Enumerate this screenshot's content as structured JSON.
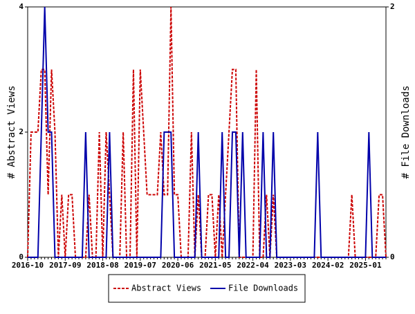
{
  "chart_data": {
    "type": "line",
    "y_label": "# Abstract Views",
    "y2_label": "# File Downloads",
    "categories": [
      "2016-10",
      null,
      null,
      null,
      null,
      null,
      null,
      null,
      null,
      null,
      null,
      "2017-09",
      null,
      null,
      null,
      null,
      null,
      null,
      null,
      null,
      null,
      null,
      "2018-08",
      null,
      null,
      null,
      null,
      null,
      null,
      null,
      null,
      null,
      null,
      "2019-07",
      null,
      null,
      null,
      null,
      null,
      null,
      null,
      null,
      null,
      null,
      "2020-06",
      null,
      null,
      null,
      null,
      null,
      null,
      null,
      null,
      null,
      null,
      "2021-05",
      null,
      null,
      null,
      null,
      null,
      null,
      null,
      null,
      null,
      null,
      "2022-04",
      null,
      null,
      null,
      null,
      null,
      null,
      null,
      null,
      null,
      null,
      "2023-03",
      null,
      null,
      null,
      null,
      null,
      null,
      null,
      null,
      null,
      null,
      "2024-02",
      null,
      null,
      null,
      null,
      null,
      null,
      null,
      null,
      null,
      null,
      "2025-01",
      null,
      null,
      null,
      null,
      null,
      null
    ],
    "series": [
      {
        "name": "Abstract Views",
        "color": "#cc0000",
        "dash": true,
        "values": [
          0,
          2,
          2,
          2,
          3,
          3,
          1,
          3,
          2,
          0,
          1,
          0,
          1,
          1,
          0,
          0,
          0,
          0,
          1,
          0,
          0,
          2,
          0,
          2,
          1,
          0,
          0,
          0,
          2,
          0,
          0,
          3,
          0,
          3,
          2,
          1,
          1,
          1,
          1,
          2,
          1,
          1,
          4,
          1,
          1,
          0,
          0,
          0,
          2,
          0,
          1,
          0,
          0,
          1,
          1,
          0,
          1,
          0,
          1,
          2,
          3,
          3,
          0,
          0,
          0,
          0,
          0,
          3,
          0,
          0,
          1,
          0,
          1,
          0,
          0,
          0,
          0,
          0,
          0,
          0,
          0,
          0,
          0,
          0,
          0,
          0,
          0,
          0,
          0,
          0,
          0,
          0,
          0,
          0,
          0,
          1,
          0,
          0,
          0,
          0,
          0,
          0,
          0,
          1,
          1,
          0
        ]
      },
      {
        "name": "File Downloads",
        "color": "#0000aa",
        "axis": "y2",
        "values": [
          0,
          0,
          0,
          0,
          1,
          2,
          1,
          1,
          0,
          0,
          0,
          0,
          0,
          0,
          0,
          0,
          0,
          1,
          0,
          0,
          0,
          0,
          0,
          0,
          1,
          0,
          0,
          0,
          0,
          0,
          0,
          0,
          0,
          0,
          0,
          0,
          0,
          0,
          0,
          0,
          1,
          1,
          1,
          0,
          0,
          0,
          0,
          0,
          0,
          0,
          1,
          0,
          0,
          0,
          0,
          0,
          0,
          1,
          0,
          0,
          1,
          1,
          0,
          1,
          0,
          0,
          0,
          0,
          0,
          1,
          0,
          0,
          1,
          0,
          0,
          0,
          0,
          0,
          0,
          0,
          0,
          0,
          0,
          0,
          0,
          1,
          0,
          0,
          0,
          0,
          0,
          0,
          0,
          0,
          0,
          0,
          0,
          0,
          0,
          0,
          1,
          0,
          0,
          0,
          0,
          0
        ]
      }
    ],
    "ylim": [
      0,
      4
    ],
    "yticks": [
      0,
      2,
      4
    ],
    "y2lim": [
      0,
      2
    ],
    "y2ticks": [
      0,
      2
    ],
    "legend": "bottom"
  }
}
